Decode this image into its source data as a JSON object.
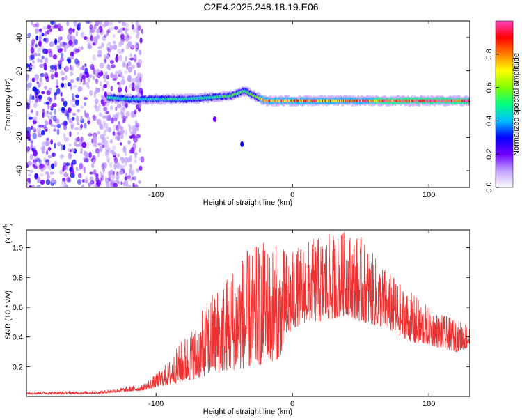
{
  "title": "C2E4.2025.248.18.19.E06",
  "chart_data": [
    {
      "type": "heatmap",
      "xlabel": "Height of straight line (km)",
      "ylabel": "Frequency (Hz)",
      "xlim": [
        -195,
        130
      ],
      "ylim": [
        -50,
        50
      ],
      "xticks": [
        -100,
        0,
        100
      ],
      "xtick_labels": [
        "-100",
        "0",
        "100"
      ],
      "yticks": [
        -40,
        -20,
        0,
        20,
        40
      ],
      "ytick_labels": [
        "-40",
        "-20",
        "0",
        "20",
        "40"
      ],
      "colorbar": {
        "label": "Normalized spectral amplitude",
        "range": [
          0,
          1
        ],
        "ticks": [
          0.0,
          0.2,
          0.4,
          0.6,
          0.8
        ],
        "tick_labels": [
          "0.0",
          "0.2",
          "0.4",
          "0.6",
          "0.8"
        ],
        "colors": [
          "#ffffff",
          "#c0a0ff",
          "#7000ff",
          "#0000ff",
          "#00c0ff",
          "#00ff80",
          "#80ff00",
          "#ffff00",
          "#ff8000",
          "#ff0000",
          "#ff40c0"
        ]
      },
      "noise_region_x": [
        -195,
        -110
      ],
      "ridge": {
        "x": [
          -135,
          -120,
          -100,
          -80,
          -60,
          -45,
          -35,
          -28,
          -20,
          -10,
          0,
          20,
          40,
          60,
          80,
          100,
          130
        ],
        "freq": [
          4,
          3,
          3,
          3,
          4,
          5,
          8,
          5,
          2,
          2,
          2,
          2,
          2,
          2,
          2,
          2,
          2
        ],
        "amplitude": [
          0.5,
          0.45,
          0.5,
          0.5,
          0.5,
          0.55,
          0.55,
          0.6,
          0.8,
          0.8,
          0.85,
          0.85,
          0.85,
          0.9,
          0.9,
          0.95,
          0.95
        ]
      },
      "isolated_features": [
        {
          "x": -37,
          "freq": -24,
          "amplitude": 0.25
        },
        {
          "x": -57,
          "freq": -9,
          "amplitude": 0.2
        }
      ]
    },
    {
      "type": "line",
      "xlabel": "Height of straight line (km)",
      "ylabel": "SNR (10 * v/v)",
      "multiplier_label": "(x10",
      "multiplier_exp": "4",
      "xlim": [
        -195,
        130
      ],
      "ylim": [
        0,
        11200
      ],
      "xticks": [
        -100,
        0,
        100
      ],
      "xtick_labels": [
        "-100",
        "0",
        "100"
      ],
      "yticks": [
        2000,
        4000,
        6000,
        8000,
        10000
      ],
      "ytick_labels": [
        "0.2",
        "0.4",
        "0.6",
        "0.8",
        "1.0"
      ],
      "color": "#ee3030",
      "series": [
        {
          "name": "SNR",
          "x": [
            -195,
            -180,
            -160,
            -140,
            -125,
            -110,
            -100,
            -90,
            -80,
            -70,
            -60,
            -50,
            -40,
            -30,
            -20,
            -10,
            0,
            10,
            20,
            30,
            40,
            50,
            60,
            70,
            80,
            90,
            100,
            110,
            120,
            130
          ],
          "envelope_low": [
            150,
            150,
            150,
            200,
            300,
            400,
            600,
            800,
            1000,
            1200,
            1500,
            1700,
            1800,
            2000,
            2200,
            2500,
            4500,
            5000,
            5000,
            5200,
            5500,
            5000,
            4800,
            4500,
            4000,
            3500,
            3500,
            3200,
            3000,
            3300
          ],
          "envelope_high": [
            350,
            350,
            350,
            400,
            600,
            800,
            1500,
            2500,
            4000,
            5000,
            7000,
            8000,
            9500,
            10000,
            10500,
            10200,
            9800,
            10500,
            10800,
            11000,
            11200,
            10800,
            9500,
            8500,
            7500,
            6800,
            6000,
            5500,
            5200,
            5000
          ]
        }
      ]
    }
  ]
}
